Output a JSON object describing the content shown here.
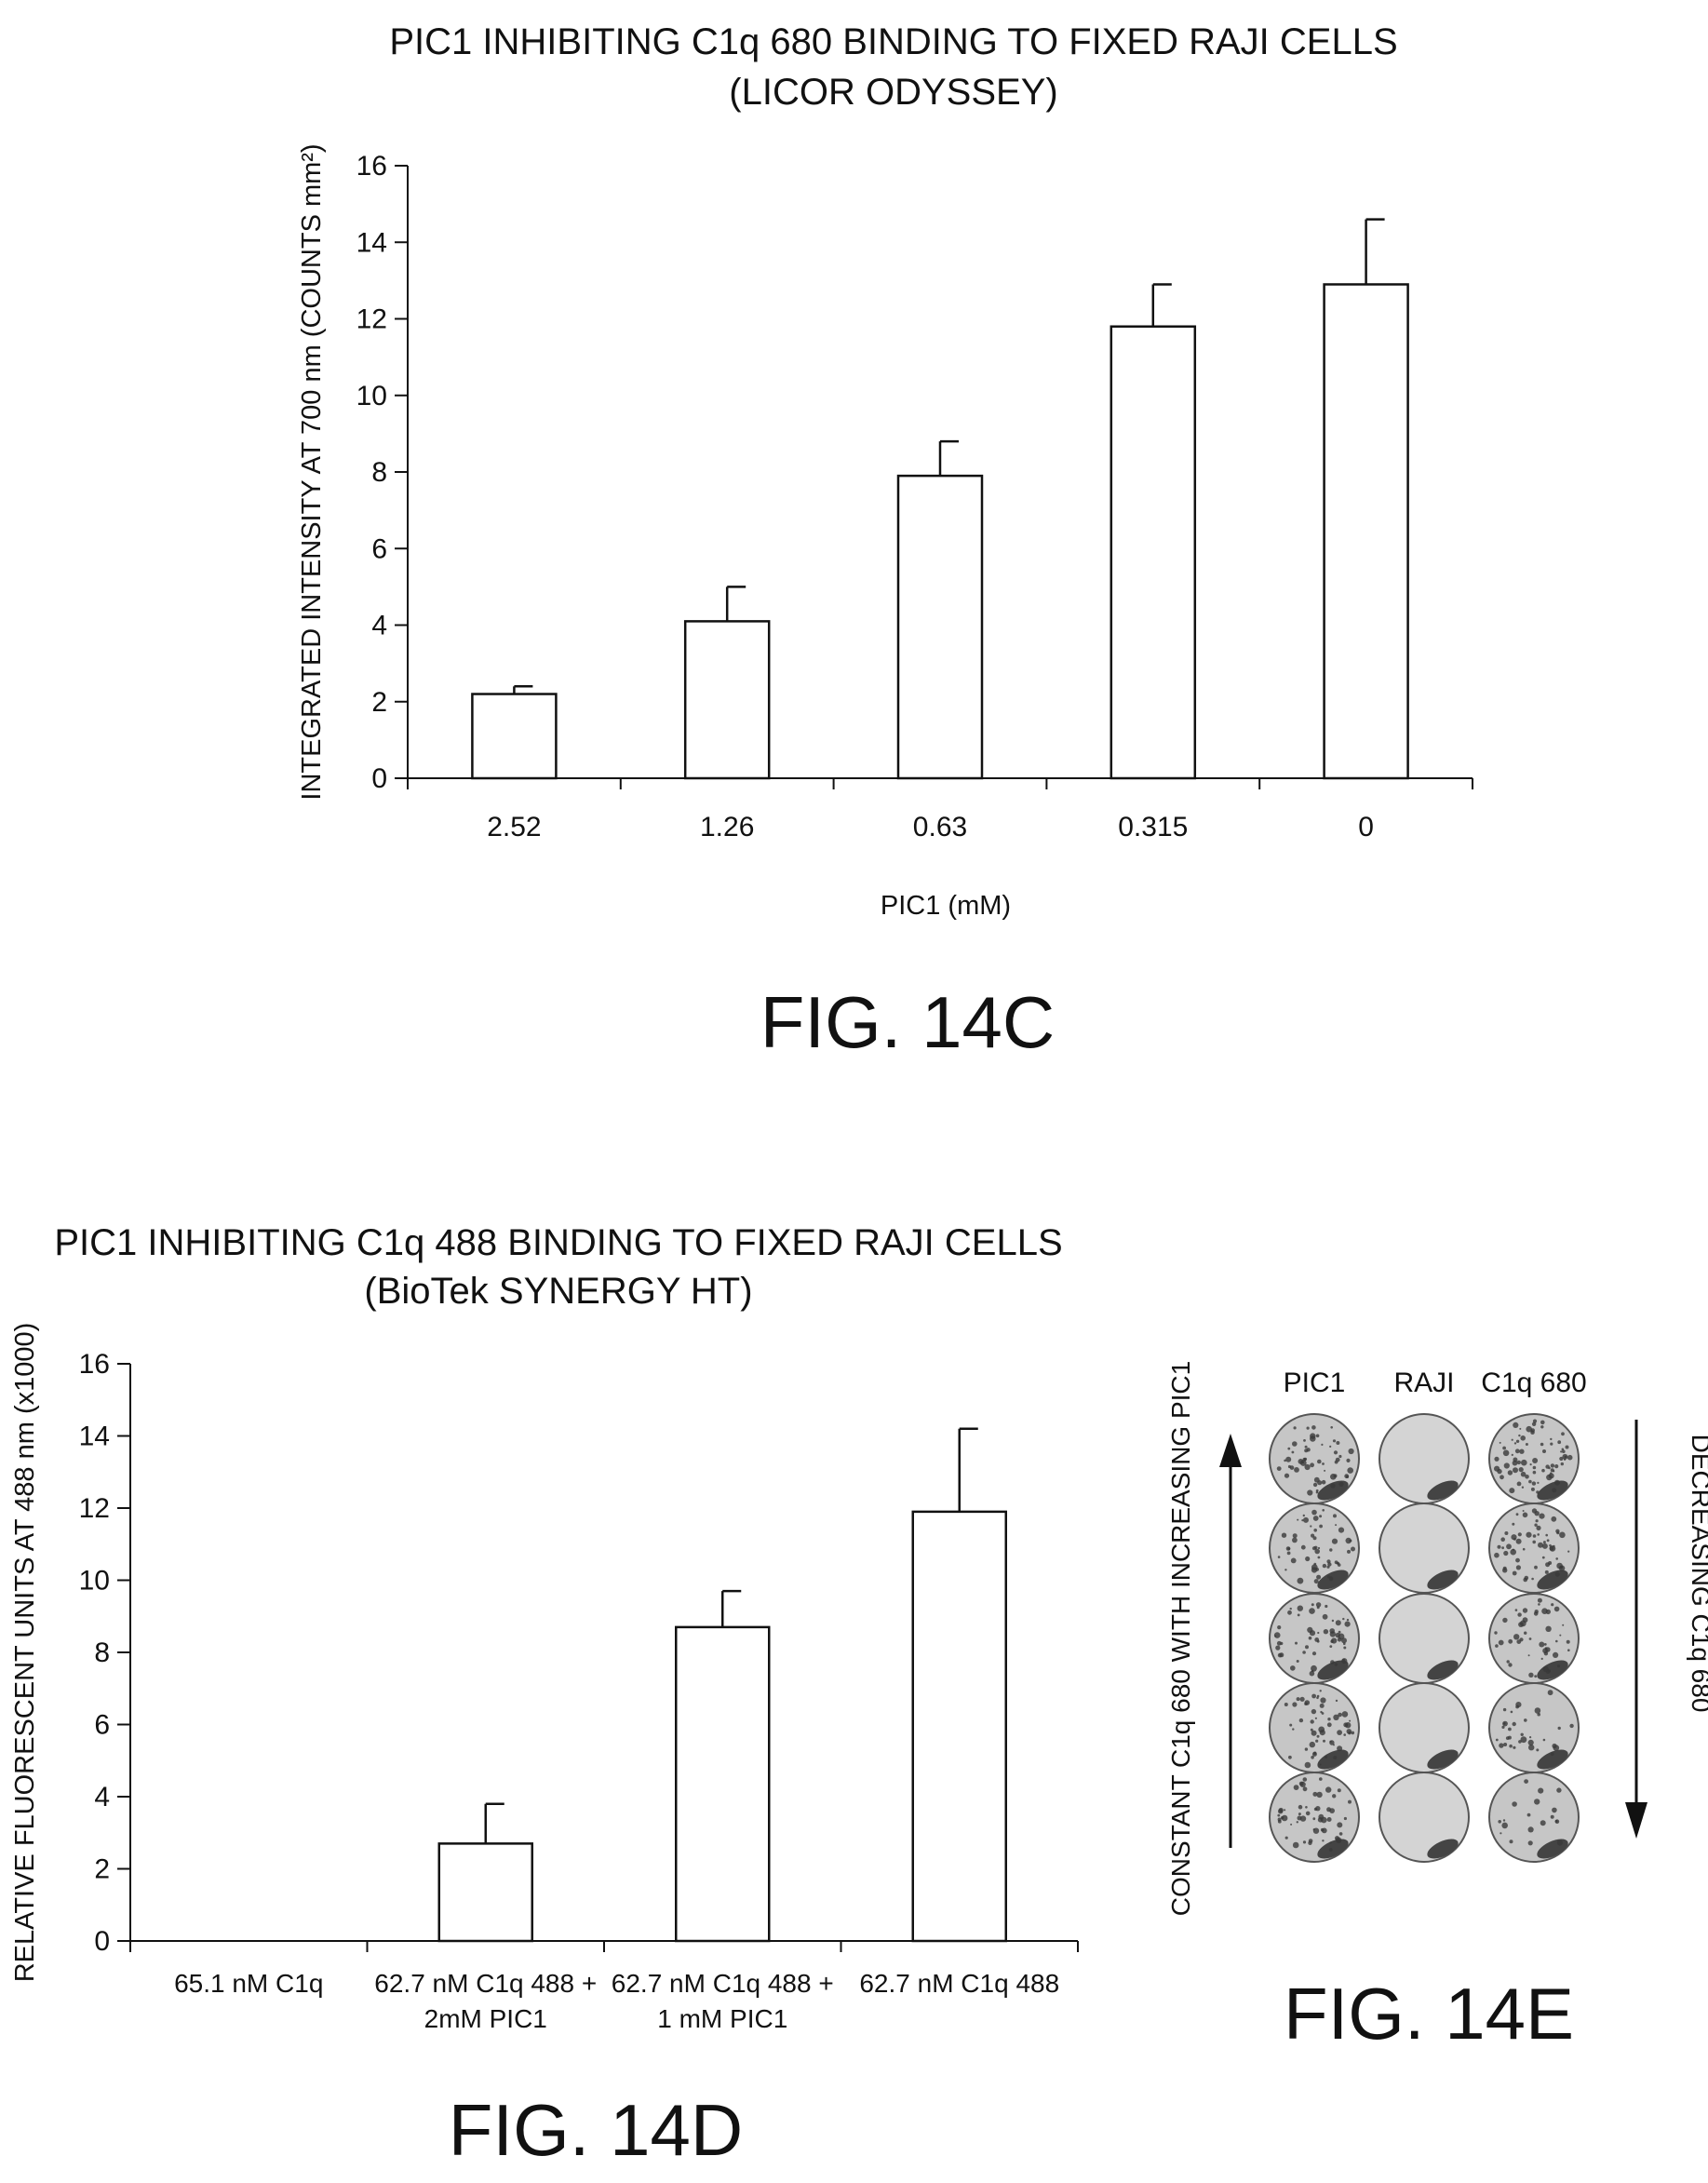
{
  "figures": {
    "c": {
      "label": "FIG. 14C",
      "title_line1": "PIC1 INHIBITING C1q 680 BINDING TO FIXED RAJI CELLS",
      "title_line2": "(LICOR ODYSSEY)"
    },
    "d": {
      "label": "FIG. 14D",
      "title_line1": "PIC1 INHIBITING C1q 488 BINDING TO FIXED RAJI CELLS",
      "title_line2": "(BioTek SYNERGY HT)"
    },
    "e": {
      "label": "FIG. 14E",
      "columns": [
        "PIC1",
        "RAJI",
        "C1q 680"
      ],
      "left_label": "CONSTANT C1q 680 WITH INCREASING PIC1",
      "right_label": "DECREASING C1q 680",
      "rows": 5
    }
  },
  "chart_data": [
    {
      "type": "bar",
      "title": "PIC1 INHIBITING C1q 680 BINDING TO FIXED RAJI CELLS (LICOR ODYSSEY)",
      "xlabel": "PIC1 (mM)",
      "ylabel": "INTEGRATED INTENSITY AT 700 nm (COUNTS mm²)",
      "categories": [
        "2.52",
        "1.26",
        "0.63",
        "0.315",
        "0"
      ],
      "values": [
        2.2,
        4.1,
        7.9,
        11.8,
        12.9
      ],
      "error": [
        0.2,
        0.9,
        0.9,
        1.1,
        1.7
      ],
      "ylim": [
        0,
        16
      ],
      "yticks": [
        0,
        2,
        4,
        6,
        8,
        10,
        12,
        14,
        16
      ],
      "grid": false
    },
    {
      "type": "bar",
      "title": "PIC1 INHIBITING C1q 488 BINDING TO FIXED RAJI CELLS (BioTek SYNERGY HT)",
      "xlabel": "",
      "ylabel": "RELATIVE FLUORESCENT UNITS AT 488 nm (x1000)",
      "categories": [
        [
          "65.1 nM C1q"
        ],
        [
          "62.7 nM C1q 488 +",
          "2mM PIC1"
        ],
        [
          "62.7 nM C1q 488 +",
          "1 mM PIC1"
        ],
        [
          "62.7 nM C1q 488"
        ]
      ],
      "values": [
        0,
        2.7,
        8.7,
        11.9
      ],
      "error": [
        0,
        1.1,
        1.0,
        2.3
      ],
      "ylim": [
        0,
        16
      ],
      "yticks": [
        0,
        2,
        4,
        6,
        8,
        10,
        12,
        14,
        16
      ],
      "grid": false
    }
  ]
}
